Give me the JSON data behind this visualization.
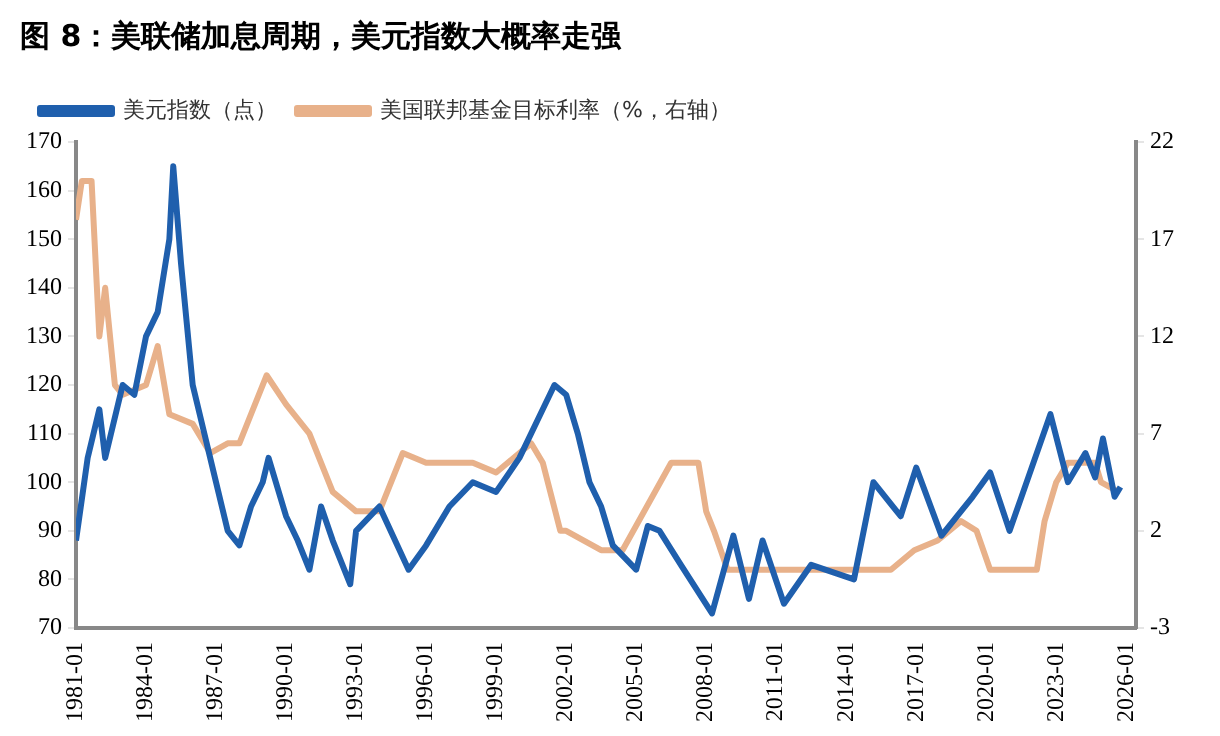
{
  "chart_data": {
    "type": "line",
    "title": "图 8：美联储加息周期，美元指数大概率走强",
    "xlim": [
      "1981-01",
      "2026-06"
    ],
    "xticks": [
      "1981-01",
      "1984-01",
      "1987-01",
      "1990-01",
      "1993-01",
      "1996-01",
      "1999-01",
      "2002-01",
      "2005-01",
      "2008-01",
      "2011-01",
      "2014-01",
      "2017-01",
      "2020-01",
      "2023-01",
      "2026-01"
    ],
    "ylim": [
      70,
      170
    ],
    "yticks": [
      70,
      80,
      90,
      100,
      110,
      120,
      130,
      140,
      150,
      160,
      170
    ],
    "y2lim": [
      -3,
      22
    ],
    "y2ticks": [
      -3,
      2,
      7,
      12,
      17,
      22
    ],
    "grid": false,
    "legend": "top",
    "series": [
      {
        "name": "美元指数（点）",
        "color": "#1f5fad",
        "x": [
          "1981-01",
          "1981-07",
          "1982-01",
          "1982-04",
          "1983-01",
          "1983-07",
          "1984-01",
          "1984-07",
          "1985-01",
          "1985-03",
          "1985-07",
          "1986-01",
          "1986-07",
          "1987-01",
          "1987-07",
          "1988-01",
          "1988-07",
          "1989-01",
          "1989-04",
          "1990-01",
          "1990-07",
          "1991-01",
          "1991-07",
          "1992-01",
          "1992-10",
          "1993-01",
          "1994-01",
          "1995-04",
          "1996-01",
          "1997-01",
          "1998-01",
          "1999-01",
          "2000-01",
          "2001-01",
          "2001-07",
          "2002-01",
          "2002-07",
          "2003-01",
          "2003-07",
          "2004-01",
          "2005-01",
          "2005-07",
          "2006-01",
          "2006-12",
          "2008-04",
          "2009-03",
          "2009-11",
          "2010-06",
          "2011-05",
          "2012-07",
          "2014-05",
          "2015-03",
          "2016-05",
          "2017-01",
          "2018-02",
          "2019-06",
          "2020-03",
          "2021-01",
          "2022-10",
          "2023-07",
          "2024-04",
          "2024-09",
          "2025-01",
          "2025-07",
          "2025-10"
        ],
        "values": [
          88,
          105,
          115,
          105,
          120,
          118,
          130,
          135,
          150,
          165,
          145,
          120,
          110,
          100,
          90,
          87,
          95,
          100,
          105,
          93,
          88,
          82,
          95,
          88,
          79,
          90,
          95,
          82,
          87,
          95,
          100,
          98,
          105,
          115,
          120,
          118,
          110,
          100,
          95,
          87,
          82,
          91,
          90,
          83,
          73,
          89,
          76,
          88,
          75,
          83,
          80,
          100,
          93,
          103,
          89,
          97,
          102,
          90,
          114,
          100,
          106,
          101,
          109,
          97,
          99
        ]
      },
      {
        "name": "美国联邦基金目标利率（%，右轴）",
        "color": "#e8b18a",
        "axis": "y2",
        "x": [
          "1981-01",
          "1981-04",
          "1981-09",
          "1982-01",
          "1982-04",
          "1982-09",
          "1983-01",
          "1984-01",
          "1984-07",
          "1985-01",
          "1986-01",
          "1986-10",
          "1987-07",
          "1988-01",
          "1989-03",
          "1990-01",
          "1991-01",
          "1992-01",
          "1993-01",
          "1994-01",
          "1995-01",
          "1996-01",
          "1998-01",
          "1999-01",
          "2000-01",
          "2000-07",
          "2001-01",
          "2001-10",
          "2002-01",
          "2003-07",
          "2004-06",
          "2006-07",
          "2007-09",
          "2008-01",
          "2008-05",
          "2008-12",
          "2015-12",
          "2016-12",
          "2017-12",
          "2018-12",
          "2019-08",
          "2020-03",
          "2022-03",
          "2022-07",
          "2023-01",
          "2023-07",
          "2024-09",
          "2024-12",
          "2025-09"
        ],
        "values": [
          18,
          20,
          20,
          12,
          14.5,
          9.5,
          9,
          9.5,
          11.5,
          8,
          7.5,
          6,
          6.5,
          6.5,
          10,
          8.5,
          7,
          4,
          3,
          3,
          6,
          5.5,
          5.5,
          5,
          6,
          6.5,
          5.5,
          2,
          2,
          1,
          1,
          5.5,
          5.5,
          3,
          2,
          0,
          0,
          1,
          1.5,
          2.5,
          2,
          0,
          0,
          2.5,
          4.5,
          5.5,
          5.5,
          4.5,
          4
        ]
      }
    ]
  }
}
